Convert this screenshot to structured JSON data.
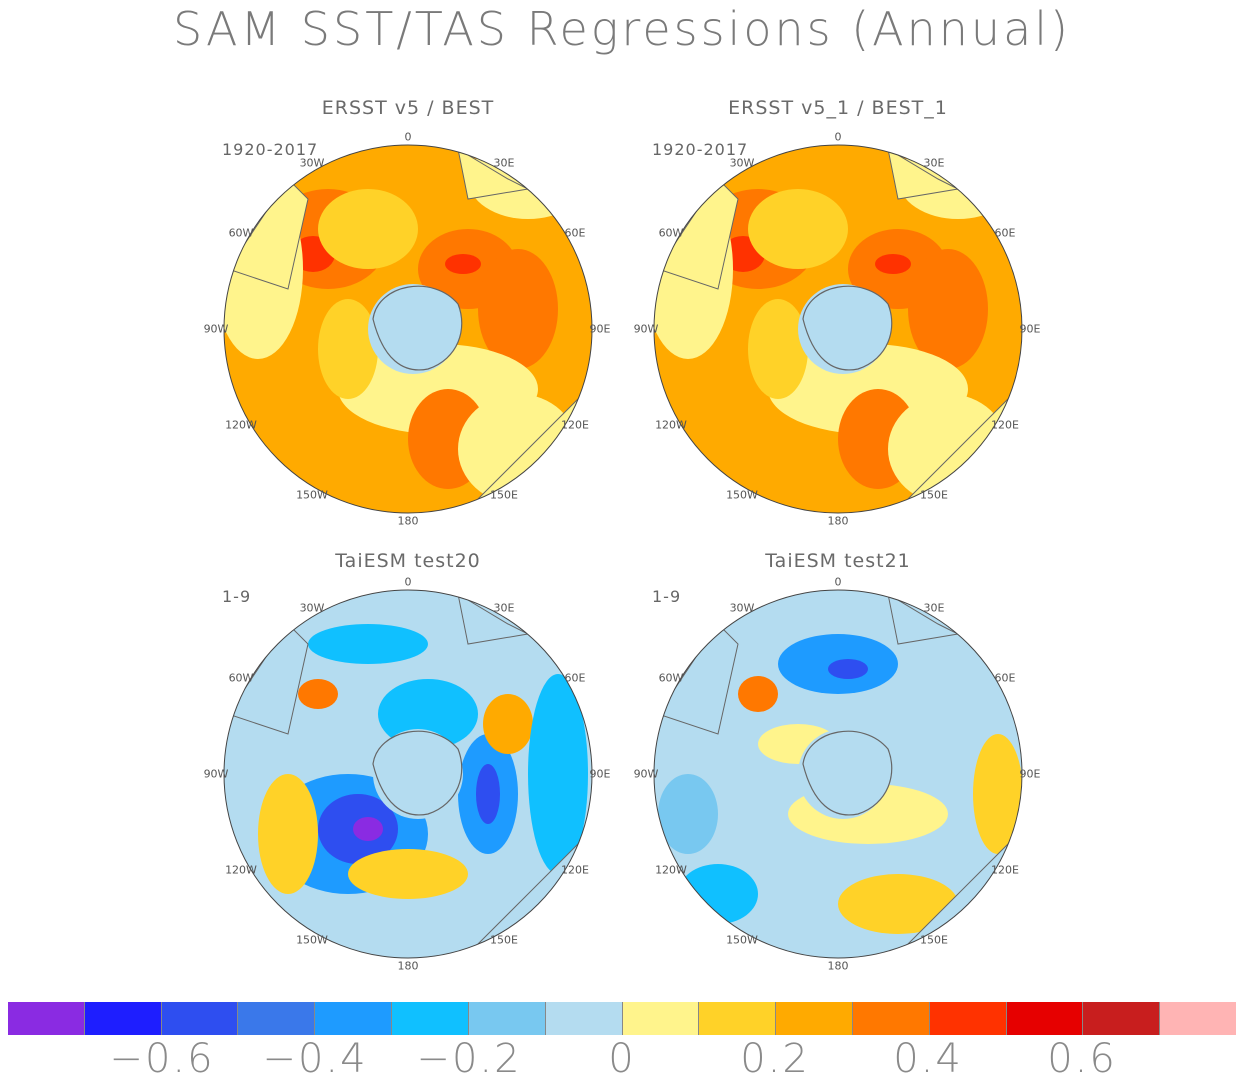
{
  "title": "SAM SST/TAS Regressions (Annual)",
  "lon_labels": [
    "0",
    "30E",
    "60E",
    "90E",
    "120E",
    "150E",
    "180",
    "150W",
    "120W",
    "90W",
    "60W",
    "30W"
  ],
  "panels": [
    {
      "title": "ERSST v5 / BEST",
      "period": "1920-2017"
    },
    {
      "title": "ERSST v5_1 / BEST_1",
      "period": "1920-2017"
    },
    {
      "title": "TaiESM test20",
      "period": "1-9"
    },
    {
      "title": "TaiESM test21",
      "period": "1-9"
    }
  ],
  "colorbar": {
    "colors": [
      "#8a2be2",
      "#1e1eff",
      "#2e4ef0",
      "#3a78ea",
      "#1e9bff",
      "#10c0ff",
      "#78c8f0",
      "#b4dcf0",
      "#fff48c",
      "#ffd228",
      "#ffaa00",
      "#ff7800",
      "#ff3200",
      "#e60000",
      "#c81e1e",
      "#ffb4b4"
    ],
    "tick_labels": [
      "-0.6",
      "-0.4",
      "-0.2",
      "0",
      "0.2",
      "0.4",
      "0.6"
    ]
  }
}
